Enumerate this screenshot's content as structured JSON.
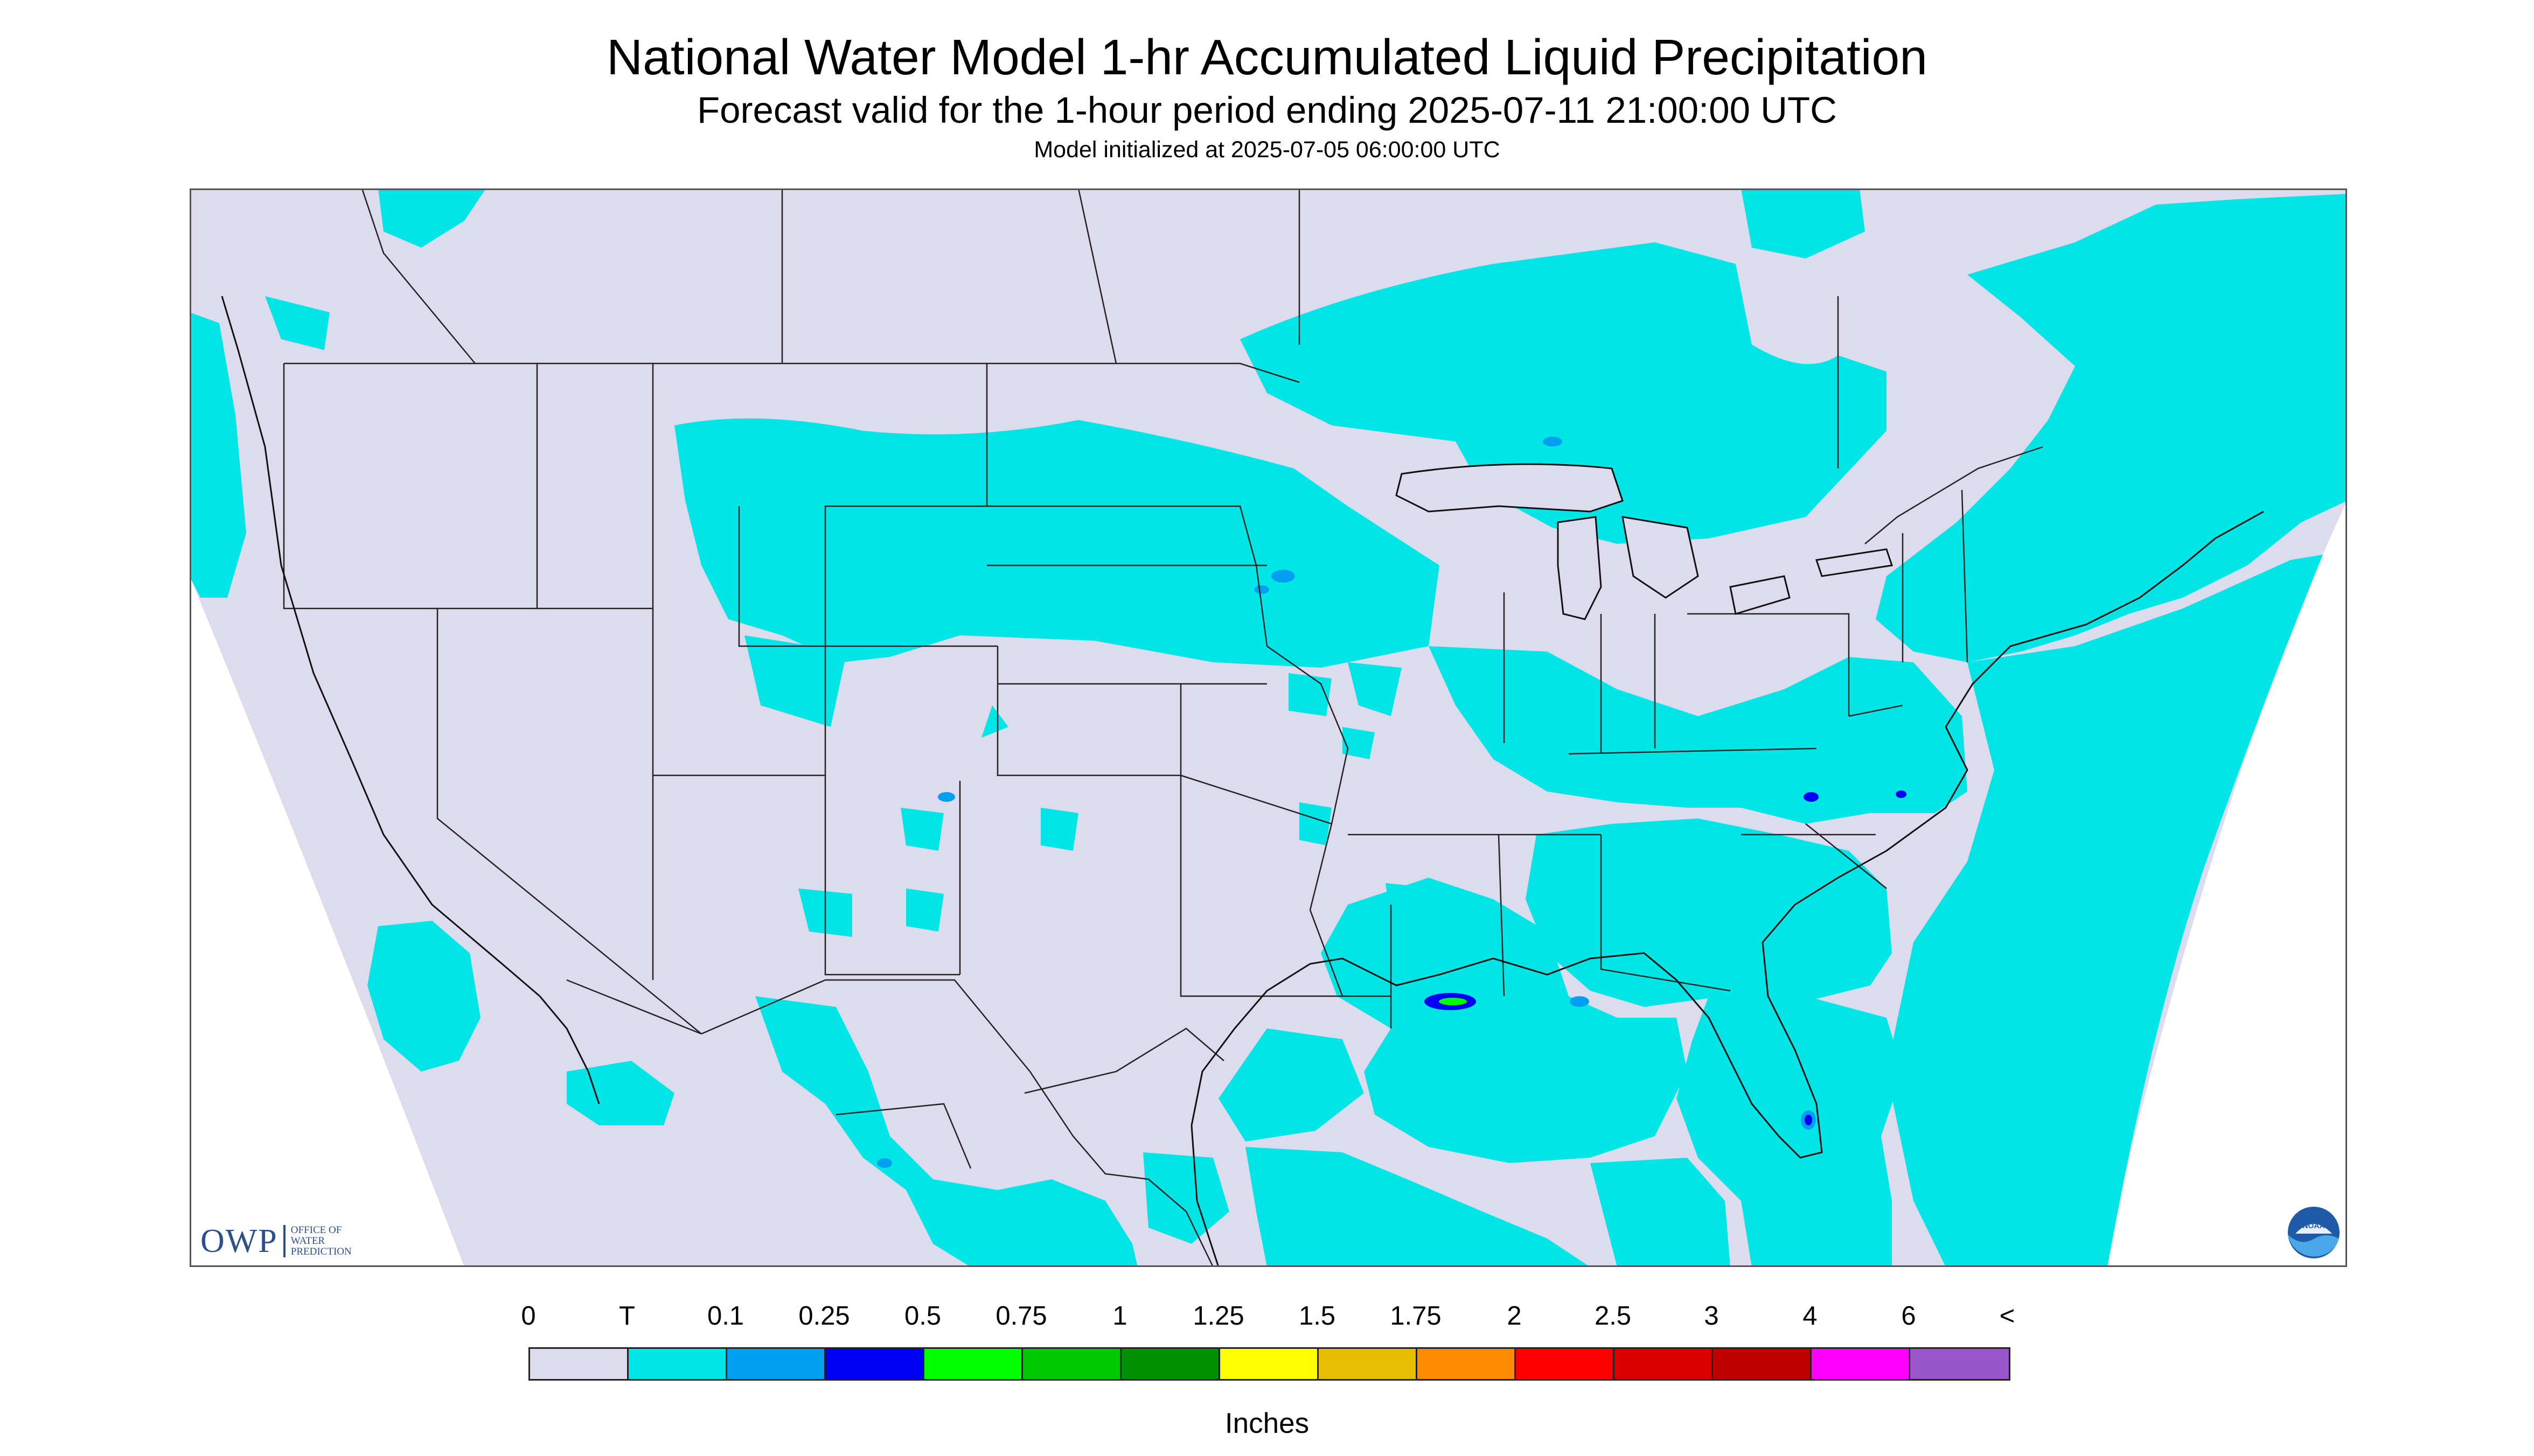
{
  "header": {
    "title": "National Water Model 1-hr Accumulated Liquid Precipitation",
    "subtitle": "Forecast valid for the 1-hour period ending 2025-07-11 21:00:00 UTC",
    "initialized": "Model initialized at 2025-07-05 06:00:00 UTC"
  },
  "logos": {
    "owp_mark": "OWP",
    "owp_text": "OFFICE OF\nWATER\nPREDICTION",
    "noaa_text": "NOAA"
  },
  "legend": {
    "labels": [
      "0",
      "T",
      "0.1",
      "0.25",
      "0.5",
      "0.75",
      "1",
      "1.25",
      "1.5",
      "1.75",
      "2",
      "2.5",
      "3",
      "4",
      "6",
      "<"
    ],
    "colors": [
      "#dcdcee",
      "#00e5e5",
      "#00a0f0",
      "#0000f5",
      "#00ff00",
      "#00c800",
      "#009000",
      "#ffff00",
      "#e6bd00",
      "#ff8c00",
      "#ff0000",
      "#d90000",
      "#bf0000",
      "#ff00ff",
      "#9a55c8"
    ],
    "units": "Inches"
  },
  "colors": {
    "background_land": "#dcdcee",
    "trace_precip": "#00e5e5",
    "light_precip": "#00a0f0",
    "moderate_precip": "#0000f5",
    "heavy_precip": "#00ff00",
    "boundary": "#222222"
  }
}
